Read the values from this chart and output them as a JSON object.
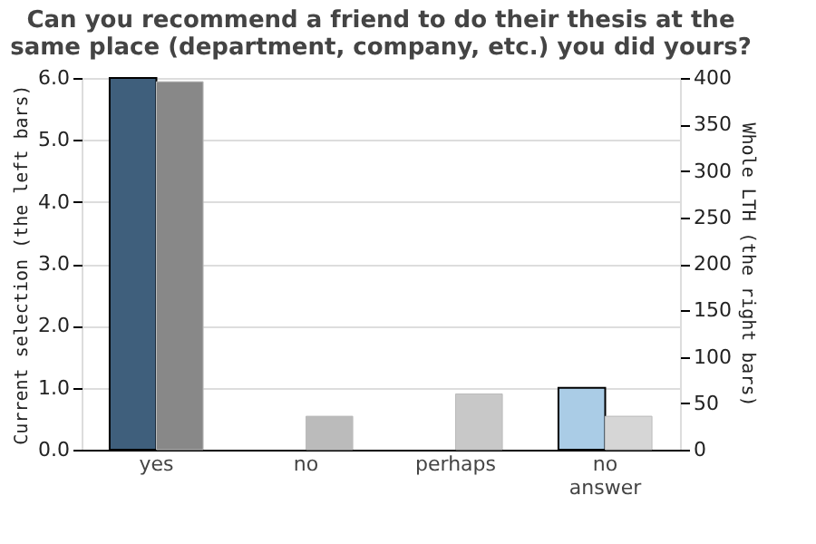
{
  "chart_data": {
    "type": "bar",
    "title": "Can you recommend a friend to do their thesis at the same place (department, company, etc.) you did yours?",
    "categories": [
      "yes",
      "no",
      "perhaps",
      "no answer"
    ],
    "ylabel": "Current selection (the left bars)",
    "y2label": "Whole LTH (the right bars)",
    "series": [
      {
        "values": [
          6.0,
          0,
          0,
          1.0
        ],
        "colors": [
          "#3f5f7c",
          "#3f5f7c",
          "#3f5f7c",
          "#aacce6"
        ]
      },
      {
        "values": [
          396,
          36,
          60,
          36
        ],
        "axis": "y2",
        "colors": [
          "#888888",
          "#bbbbbb",
          "#c8c8c8",
          "#d6d6d6"
        ]
      }
    ],
    "ylim": [
      0,
      6
    ],
    "yticks": [
      {
        "value": 0,
        "label": "0.0"
      },
      {
        "value": 1,
        "label": "1.0"
      },
      {
        "value": 2,
        "label": "2.0"
      },
      {
        "value": 3,
        "label": "3.0"
      },
      {
        "value": 4,
        "label": "4.0"
      },
      {
        "value": 5,
        "label": "5.0"
      },
      {
        "value": 6,
        "label": "6.0"
      }
    ],
    "y2lim": [
      0,
      400
    ],
    "y2ticks": [
      0,
      50,
      100,
      150,
      200,
      250,
      300,
      350,
      400
    ],
    "grid": "y"
  }
}
